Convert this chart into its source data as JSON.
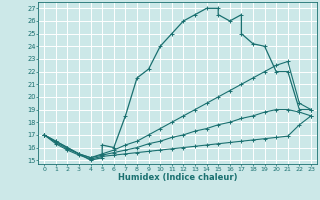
{
  "xlabel": "Humidex (Indice chaleur)",
  "background_color": "#cce8e8",
  "grid_color": "#ffffff",
  "line_color": "#1a7070",
  "xlim": [
    -0.5,
    23.5
  ],
  "ylim": [
    14.7,
    27.5
  ],
  "xticks": [
    0,
    1,
    2,
    3,
    4,
    5,
    6,
    7,
    8,
    9,
    10,
    11,
    12,
    13,
    14,
    15,
    16,
    17,
    18,
    19,
    20,
    21,
    22,
    23
  ],
  "yticks": [
    15,
    16,
    17,
    18,
    19,
    20,
    21,
    22,
    23,
    24,
    25,
    26,
    27
  ],
  "series": [
    {
      "x": [
        0,
        1,
        2,
        3,
        4,
        5,
        5,
        6,
        7,
        8,
        9,
        10,
        11,
        12,
        13,
        14,
        15,
        15,
        16,
        17,
        17,
        18,
        19,
        20,
        21,
        22,
        23
      ],
      "y": [
        17,
        16.5,
        16,
        15.5,
        15.0,
        15.2,
        16.2,
        16.0,
        18.5,
        21.5,
        22.2,
        24.0,
        25.0,
        26.0,
        26.5,
        27.0,
        27.0,
        26.5,
        26.0,
        26.5,
        25.0,
        24.2,
        24.0,
        22.0,
        22.0,
        19.0,
        19.0
      ]
    },
    {
      "x": [
        0,
        1,
        2,
        3,
        4,
        5,
        6,
        7,
        8,
        9,
        10,
        11,
        12,
        13,
        14,
        15,
        16,
        17,
        18,
        19,
        20,
        21,
        22,
        23
      ],
      "y": [
        17,
        16.5,
        16,
        15.5,
        15.2,
        15.5,
        15.8,
        16.2,
        16.5,
        17.0,
        17.5,
        18.0,
        18.5,
        19.0,
        19.5,
        20.0,
        20.5,
        21.0,
        21.5,
        22.0,
        22.5,
        22.8,
        19.5,
        19.0
      ]
    },
    {
      "x": [
        0,
        1,
        2,
        3,
        4,
        5,
        6,
        7,
        8,
        9,
        10,
        11,
        12,
        13,
        14,
        15,
        16,
        17,
        18,
        19,
        20,
        21,
        22,
        23
      ],
      "y": [
        17,
        16.4,
        15.9,
        15.5,
        15.2,
        15.4,
        15.6,
        15.8,
        16.0,
        16.3,
        16.5,
        16.8,
        17.0,
        17.3,
        17.5,
        17.8,
        18.0,
        18.3,
        18.5,
        18.8,
        19.0,
        19.0,
        18.8,
        18.5
      ]
    },
    {
      "x": [
        0,
        1,
        2,
        3,
        4,
        5,
        6,
        7,
        8,
        9,
        10,
        11,
        12,
        13,
        14,
        15,
        16,
        17,
        18,
        19,
        20,
        21,
        22,
        23
      ],
      "y": [
        17,
        16.3,
        15.8,
        15.4,
        15.1,
        15.3,
        15.4,
        15.5,
        15.6,
        15.7,
        15.8,
        15.9,
        16.0,
        16.1,
        16.2,
        16.3,
        16.4,
        16.5,
        16.6,
        16.7,
        16.8,
        16.9,
        17.8,
        18.5
      ]
    }
  ]
}
